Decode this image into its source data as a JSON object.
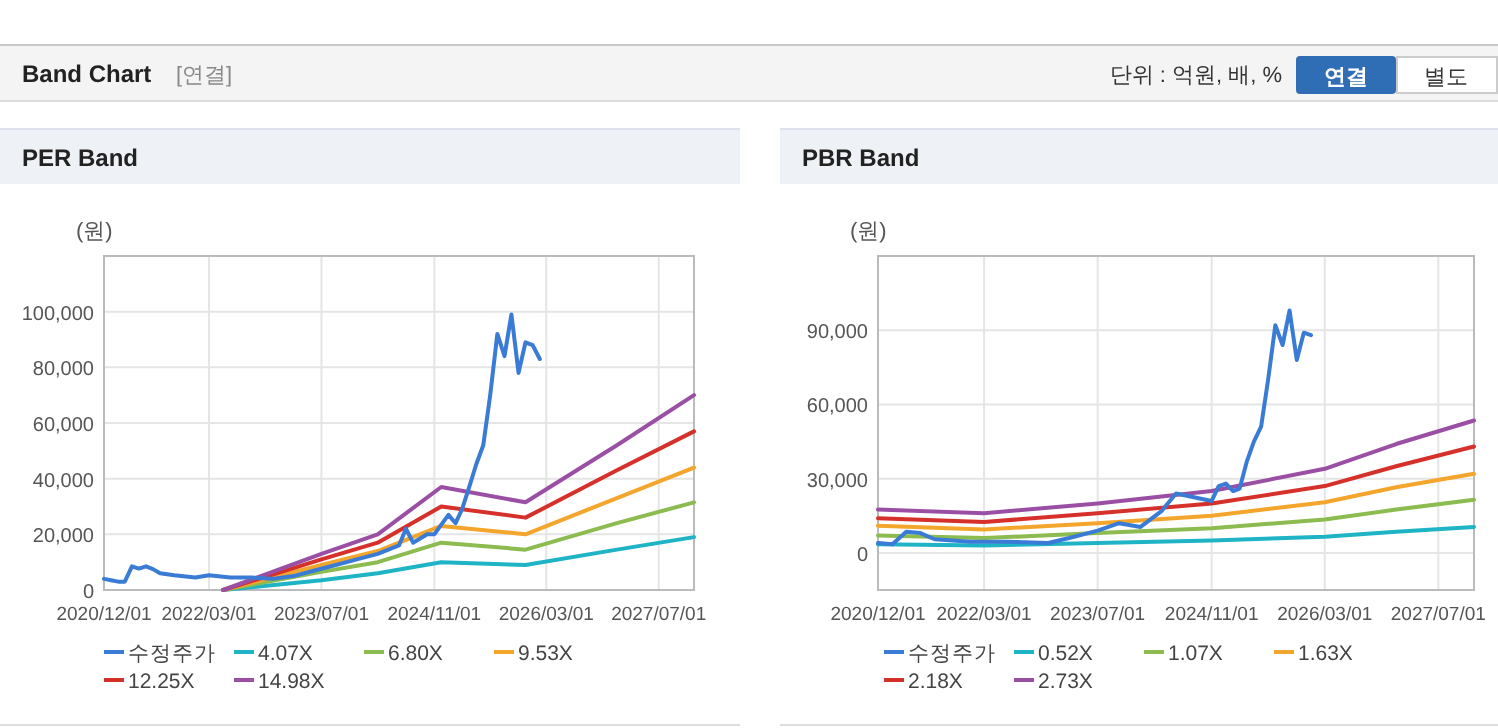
{
  "chart_data": [
    {
      "type": "line",
      "title": "PER Band",
      "ylabel": "(원)",
      "legend": "bottom",
      "grid": true,
      "annotations": [
        "Band Chart",
        "[연결]",
        "단위 : 억원, 배, %",
        "연결",
        "별도"
      ],
      "xlim": [
        "2020-12-01",
        "2027-12-01"
      ],
      "ylim": [
        0,
        120000
      ],
      "xticks": [
        {
          "value": "2020-12-01",
          "label": "2020/12/01"
        },
        {
          "value": "2022-03-01",
          "label": "2022/03/01"
        },
        {
          "value": "2023-07-01",
          "label": "2023/07/01"
        },
        {
          "value": "2024-11-01",
          "label": "2024/11/01"
        },
        {
          "value": "2026-03-01",
          "label": "2026/03/01"
        },
        {
          "value": "2027-07-01",
          "label": "2027/07/01"
        }
      ],
      "yticks": [
        0,
        {
          "value": 20000,
          "label": "20,000"
        },
        {
          "value": 40000,
          "label": "40,000"
        },
        {
          "value": 60000,
          "label": "60,000"
        },
        {
          "value": 80000,
          "label": "80,000"
        },
        {
          "value": 100000,
          "label": "100,000"
        }
      ],
      "series": [
        {
          "name": "수정주가",
          "color": "#3a7bd5",
          "x": [
            "2020-12-01",
            "2021-01-01",
            "2021-02-01",
            "2021-03-01",
            "2021-04-01",
            "2021-05-01",
            "2021-06-01",
            "2021-07-01",
            "2021-08-01",
            "2021-10-01",
            "2022-01-01",
            "2022-03-01",
            "2022-06-01",
            "2022-09-01",
            "2022-12-01",
            "2023-03-01",
            "2023-06-01",
            "2023-09-01",
            "2023-12-01",
            "2024-03-01",
            "2024-06-01",
            "2024-07-01",
            "2024-08-01",
            "2024-10-01",
            "2024-11-01",
            "2025-01-01",
            "2025-02-01",
            "2025-03-01",
            "2025-04-01",
            "2025-05-01",
            "2025-06-01",
            "2025-07-01",
            "2025-08-01",
            "2025-09-01",
            "2025-10-01",
            "2025-11-01",
            "2025-12-01",
            "2026-01-01",
            "2026-02-01"
          ],
          "values": [
            4000,
            3500,
            3000,
            3000,
            8500,
            7700,
            8500,
            7500,
            6000,
            5300,
            4500,
            5300,
            4500,
            4500,
            4000,
            5000,
            7000,
            9000,
            11000,
            13000,
            16000,
            22000,
            17000,
            20000,
            20000,
            27000,
            24000,
            29000,
            37000,
            45000,
            52000,
            70000,
            92000,
            84000,
            99000,
            78000,
            89000,
            88000,
            83000
          ]
        },
        {
          "name": "4.07X",
          "color": "#1fb3c6",
          "x": [
            "2022-05-01",
            "2023-07-01",
            "2024-03-01",
            "2024-12-01",
            "2025-12-01",
            "2027-01-01",
            "2027-12-01"
          ],
          "values": [
            0,
            3500,
            6000,
            10000,
            9000,
            14500,
            19000
          ]
        },
        {
          "name": "6.80X",
          "color": "#8cbb4f",
          "x": [
            "2022-05-01",
            "2023-07-01",
            "2024-03-01",
            "2024-12-01",
            "2025-12-01",
            "2027-01-01",
            "2027-12-01"
          ],
          "values": [
            0,
            6500,
            10000,
            17000,
            14500,
            24000,
            31500
          ]
        },
        {
          "name": "9.53X",
          "color": "#f4a52c",
          "x": [
            "2022-05-01",
            "2023-07-01",
            "2024-03-01",
            "2024-12-01",
            "2025-12-01",
            "2027-01-01",
            "2027-12-01"
          ],
          "values": [
            0,
            9000,
            14000,
            23000,
            20000,
            33000,
            44000
          ]
        },
        {
          "name": "12.25X",
          "color": "#d6302b",
          "x": [
            "2022-05-01",
            "2023-07-01",
            "2024-03-01",
            "2024-12-01",
            "2025-12-01",
            "2027-01-01",
            "2027-12-01"
          ],
          "values": [
            0,
            11000,
            17000,
            30000,
            26000,
            43000,
            57000
          ]
        },
        {
          "name": "14.98X",
          "color": "#9a4fa5",
          "x": [
            "2022-05-01",
            "2023-07-01",
            "2024-03-01",
            "2024-12-01",
            "2025-12-01",
            "2027-01-01",
            "2027-12-01"
          ],
          "values": [
            0,
            13000,
            20000,
            37000,
            31500,
            52000,
            70000
          ]
        }
      ]
    },
    {
      "type": "line",
      "title": "PBR Band",
      "ylabel": "(원)",
      "legend": "bottom",
      "grid": true,
      "xlim": [
        "2020-12-01",
        "2027-12-01"
      ],
      "ylim": [
        -15000,
        120000
      ],
      "xticks": [
        {
          "value": "2020-12-01",
          "label": "2020/12/01"
        },
        {
          "value": "2022-03-01",
          "label": "2022/03/01"
        },
        {
          "value": "2023-07-01",
          "label": "2023/07/01"
        },
        {
          "value": "2024-11-01",
          "label": "2024/11/01"
        },
        {
          "value": "2026-03-01",
          "label": "2026/03/01"
        },
        {
          "value": "2027-07-01",
          "label": "2027/07/01"
        }
      ],
      "yticks": [
        0,
        {
          "value": 30000,
          "label": "30,000"
        },
        {
          "value": 60000,
          "label": "60,000"
        },
        {
          "value": 90000,
          "label": "90,000"
        }
      ],
      "series": [
        {
          "name": "수정주가",
          "color": "#3a7bd5",
          "x": [
            "2020-12-01",
            "2021-02-01",
            "2021-04-01",
            "2021-06-01",
            "2021-08-01",
            "2022-01-01",
            "2022-06-01",
            "2022-12-01",
            "2023-03-01",
            "2023-07-01",
            "2023-10-01",
            "2024-01-01",
            "2024-04-01",
            "2024-06-01",
            "2024-11-01",
            "2024-12-01",
            "2025-01-01",
            "2025-02-01",
            "2025-03-01",
            "2025-04-01",
            "2025-05-01",
            "2025-06-01",
            "2025-07-01",
            "2025-08-01",
            "2025-09-01",
            "2025-10-01",
            "2025-11-01",
            "2025-12-01",
            "2026-01-01"
          ],
          "values": [
            4000,
            3500,
            8500,
            8000,
            5500,
            4500,
            4500,
            4000,
            6000,
            9000,
            12000,
            10500,
            17000,
            24000,
            21000,
            27000,
            28000,
            25000,
            26000,
            37000,
            45000,
            51000,
            70000,
            92000,
            84000,
            98000,
            78000,
            89000,
            88000
          ]
        },
        {
          "name": "0.52X",
          "color": "#1fb3c6",
          "x": [
            "2020-12-01",
            "2022-03-01",
            "2023-07-01",
            "2024-11-01",
            "2026-03-01",
            "2027-01-01",
            "2027-12-01"
          ],
          "values": [
            3500,
            3000,
            4000,
            5000,
            6500,
            8500,
            10500
          ]
        },
        {
          "name": "1.07X",
          "color": "#8cbb4f",
          "x": [
            "2020-12-01",
            "2022-03-01",
            "2023-07-01",
            "2024-11-01",
            "2026-03-01",
            "2027-01-01",
            "2027-12-01"
          ],
          "values": [
            7000,
            6000,
            8000,
            10000,
            13500,
            17500,
            21500
          ]
        },
        {
          "name": "1.63X",
          "color": "#f4a52c",
          "x": [
            "2020-12-01",
            "2022-03-01",
            "2023-07-01",
            "2024-11-01",
            "2026-03-01",
            "2027-01-01",
            "2027-12-01"
          ],
          "values": [
            11000,
            9500,
            12000,
            15000,
            20500,
            26500,
            32000
          ]
        },
        {
          "name": "2.18X",
          "color": "#d6302b",
          "x": [
            "2020-12-01",
            "2022-03-01",
            "2023-07-01",
            "2024-11-01",
            "2026-03-01",
            "2027-01-01",
            "2027-12-01"
          ],
          "values": [
            14000,
            12500,
            16000,
            20000,
            27000,
            35000,
            43000
          ]
        },
        {
          "name": "2.73X",
          "color": "#9a4fa5",
          "x": [
            "2020-12-01",
            "2022-03-01",
            "2023-07-01",
            "2024-11-01",
            "2026-03-01",
            "2027-01-01",
            "2027-12-01"
          ],
          "values": [
            17500,
            16000,
            20000,
            25000,
            34000,
            44000,
            53500
          ]
        }
      ]
    }
  ]
}
